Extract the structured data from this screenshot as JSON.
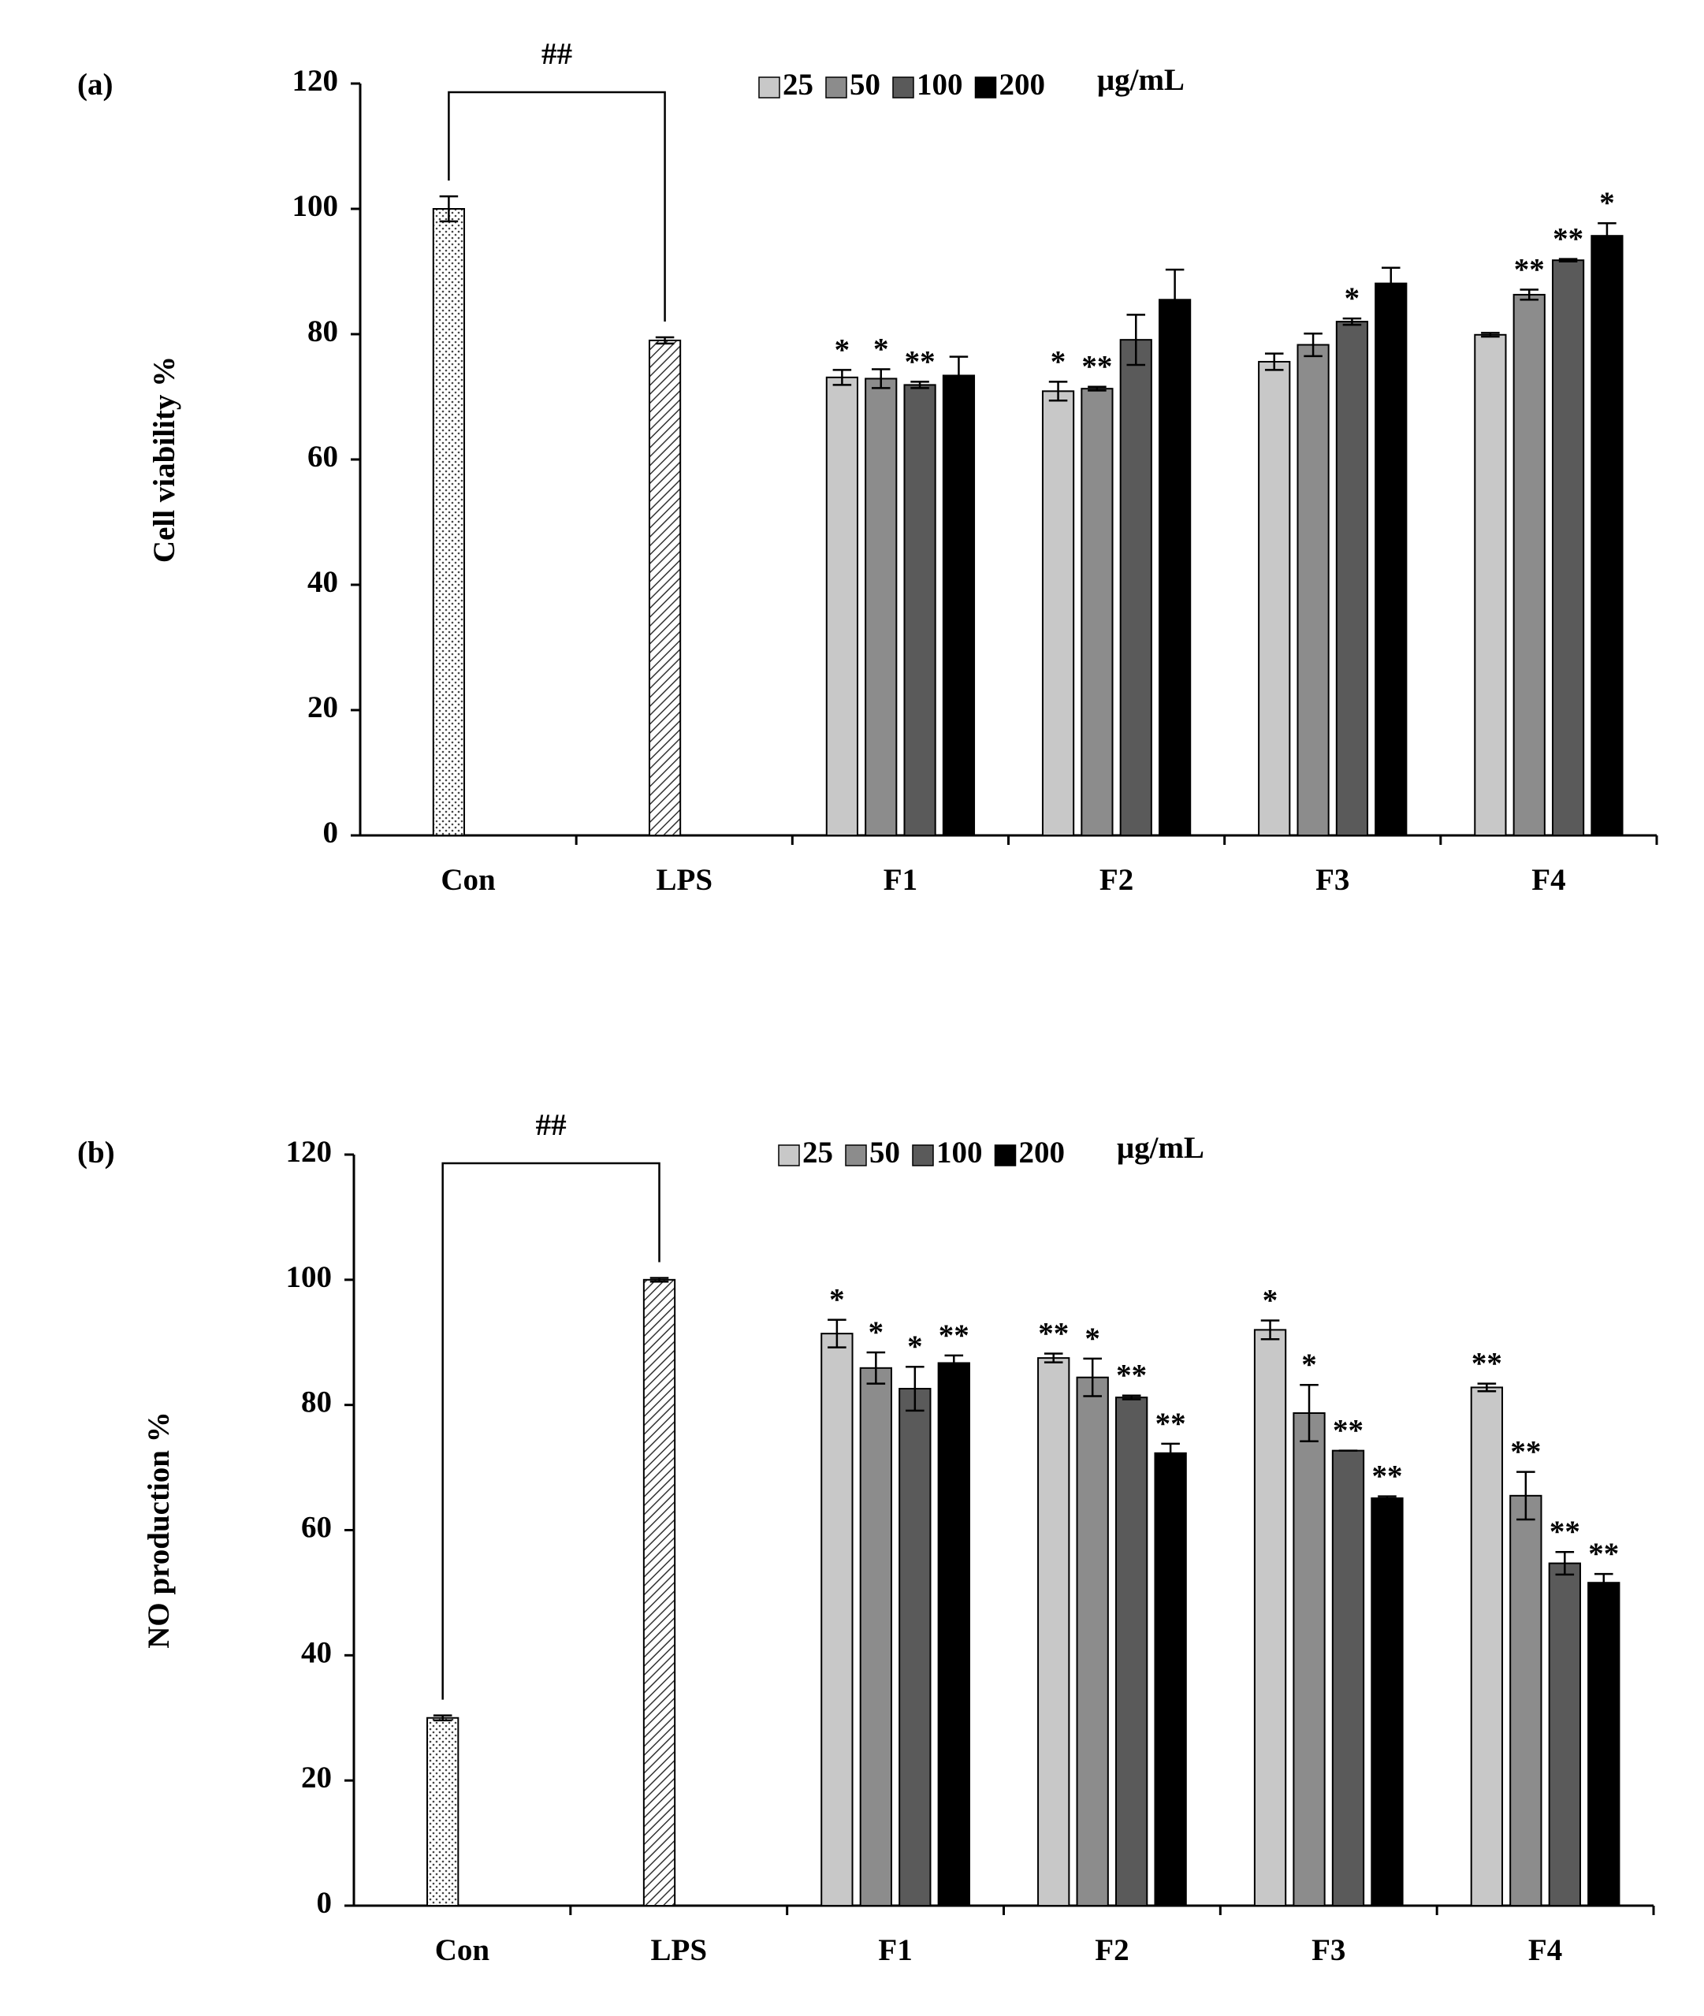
{
  "chart_data": [
    {
      "type": "bar",
      "panel_label": "(a)",
      "y_label": "Cell viability %",
      "unit_label": "μg/mL",
      "bracket_label": "##",
      "categories": [
        "Con",
        "LPS",
        "F1",
        "F2",
        "F3",
        "F4"
      ],
      "control": {
        "values": [
          100,
          79
        ],
        "errors": [
          2,
          0.5
        ]
      },
      "series": [
        {
          "name": "25",
          "color": "#c8c8c8",
          "values": [
            null,
            null,
            73.1,
            70.9,
            75.6,
            79.9
          ],
          "errors": [
            null,
            null,
            1.2,
            1.5,
            1.3,
            0.3
          ],
          "significance": [
            null,
            null,
            "*",
            "*",
            null,
            null
          ]
        },
        {
          "name": "50",
          "color": "#8c8c8c",
          "values": [
            null,
            null,
            72.9,
            71.3,
            78.3,
            86.3
          ],
          "errors": [
            null,
            null,
            1.5,
            0.3,
            1.8,
            0.8
          ],
          "significance": [
            null,
            null,
            "*",
            "**",
            null,
            "**"
          ]
        },
        {
          "name": "100",
          "color": "#5a5a5a",
          "values": [
            null,
            null,
            71.9,
            79.1,
            82.0,
            91.8
          ],
          "errors": [
            null,
            null,
            0.5,
            4,
            0.5,
            0.2
          ],
          "significance": [
            null,
            null,
            "**",
            null,
            "*",
            "**"
          ]
        },
        {
          "name": "200",
          "color": "#000000",
          "values": [
            null,
            null,
            73.4,
            85.5,
            88.1,
            95.7
          ],
          "errors": [
            null,
            null,
            3,
            4.8,
            2.5,
            2
          ],
          "significance": [
            null,
            null,
            null,
            null,
            null,
            "*"
          ]
        }
      ],
      "ylim": [
        0,
        120
      ],
      "yticks": [
        0,
        20,
        40,
        60,
        80,
        100,
        120
      ]
    },
    {
      "type": "bar",
      "panel_label": "(b)",
      "y_label": "NO production %",
      "unit_label": "μg/mL",
      "bracket_label": "##",
      "categories": [
        "Con",
        "LPS",
        "F1",
        "F2",
        "F3",
        "F4"
      ],
      "control": {
        "values": [
          30,
          100
        ],
        "errors": [
          0.4,
          0.3
        ]
      },
      "series": [
        {
          "name": "25",
          "color": "#c8c8c8",
          "values": [
            null,
            null,
            91.4,
            87.5,
            92.0,
            82.8
          ],
          "errors": [
            null,
            null,
            2.2,
            0.7,
            1.5,
            0.6
          ],
          "significance": [
            null,
            null,
            "*",
            "**",
            "*",
            "**"
          ]
        },
        {
          "name": "50",
          "color": "#8c8c8c",
          "values": [
            null,
            null,
            85.9,
            84.4,
            78.7,
            65.5
          ],
          "errors": [
            null,
            null,
            2.5,
            3,
            4.5,
            3.8
          ],
          "significance": [
            null,
            null,
            "*",
            "*",
            "*",
            "**"
          ]
        },
        {
          "name": "100",
          "color": "#5a5a5a",
          "values": [
            null,
            null,
            82.6,
            81.2,
            72.7,
            54.7
          ],
          "errors": [
            null,
            null,
            3.5,
            0.3,
            0,
            1.8
          ],
          "significance": [
            null,
            null,
            "*",
            "**",
            "**",
            "**"
          ]
        },
        {
          "name": "200",
          "color": "#000000",
          "values": [
            null,
            null,
            86.7,
            72.3,
            65.1,
            51.6
          ],
          "errors": [
            null,
            null,
            1.2,
            1.5,
            0.3,
            1.4
          ],
          "significance": [
            null,
            null,
            "**",
            "**",
            "**",
            "**"
          ]
        }
      ],
      "ylim": [
        0,
        120
      ],
      "yticks": [
        0,
        20,
        40,
        60,
        80,
        100,
        120
      ]
    }
  ]
}
